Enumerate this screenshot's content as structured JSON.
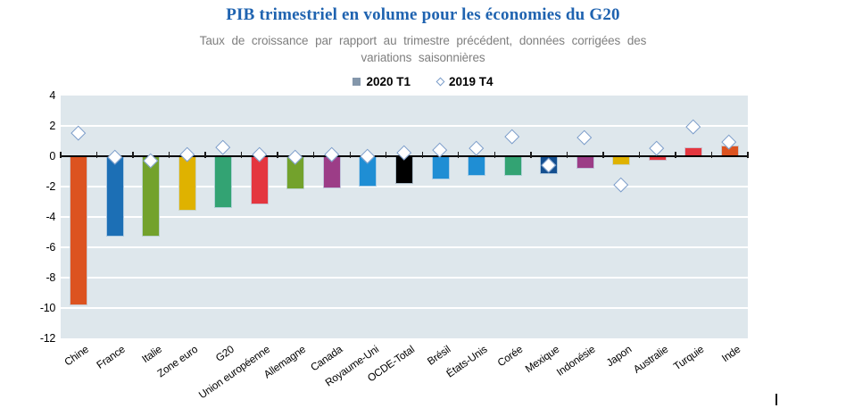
{
  "header": {
    "title": "PIB trimestriel en volume pour les économies du G20",
    "subtitle_line1": "Taux de croissance par rapport au trimestre précédent, données corrigées des",
    "subtitle_line2": "variations saisonnières"
  },
  "legend": {
    "items": [
      {
        "label": "2020 T1",
        "marker": "square",
        "color": "#8497AB"
      },
      {
        "label": "2019 T4",
        "marker": "diamond",
        "fill": "#FFFFFF",
        "border": "#7A9CC9"
      }
    ]
  },
  "chart_data": {
    "type": "bar",
    "title": "PIB trimestriel en volume pour les économies du G20",
    "subtitle": "Taux de croissance par rapport au trimestre précédent, données corrigées des variations saisonnières",
    "categories": [
      "Chine",
      "France",
      "Italie",
      "Zone euro",
      "G20",
      "Union européenne",
      "Allemagne",
      "Canada",
      "Royaume-Uni",
      "OCDE-Total",
      "Brésil",
      "États-Unis",
      "Corée",
      "Mexique",
      "Indonésie",
      "Japon",
      "Australie",
      "Turquie",
      "Inde"
    ],
    "series": [
      {
        "name": "2020 T1",
        "type": "bar",
        "values": [
          -9.8,
          -5.3,
          -5.3,
          -3.6,
          -3.4,
          -3.2,
          -2.2,
          -2.1,
          -2.0,
          -1.8,
          -1.5,
          -1.3,
          -1.3,
          -1.2,
          -0.8,
          -0.6,
          -0.3,
          0.6,
          0.7
        ]
      },
      {
        "name": "2019 T4",
        "type": "scatter-diamond",
        "values": [
          1.5,
          -0.1,
          -0.3,
          0.1,
          0.6,
          0.1,
          -0.1,
          0.1,
          0.0,
          0.2,
          0.4,
          0.5,
          1.3,
          -0.6,
          1.2,
          -1.9,
          0.5,
          1.9,
          0.9
        ]
      }
    ],
    "bar_colors": [
      "#DC5320",
      "#1C6FB5",
      "#73A22C",
      "#DFB200",
      "#33A373",
      "#E4363F",
      "#73A22C",
      "#9C3D87",
      "#1F8ED4",
      "#000000",
      "#1F8ED4",
      "#1F8ED4",
      "#33A373",
      "#134F90",
      "#9C3D87",
      "#DFB200",
      "#E4363F",
      "#E4363F",
      "#DC5320"
    ],
    "ylim": [
      -12,
      4
    ],
    "yticks": [
      4,
      2,
      0,
      -2,
      -4,
      -6,
      -8,
      -10,
      -12
    ],
    "grid": "horizontal-white-lines",
    "legend_position": "top-center",
    "marker_style": {
      "fill": "#FFFFFF",
      "border": "#7A9CC9"
    }
  },
  "colors": {
    "title": "#1F63B0",
    "subtitle": "#7F7F7F",
    "plot_background": "#DEE7EC",
    "gridline": "#FFFFFF",
    "axis_line": "#000000",
    "axis_text": "#000000"
  }
}
